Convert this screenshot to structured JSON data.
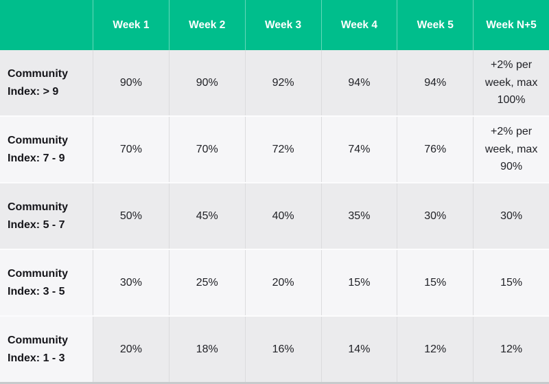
{
  "colors": {
    "header_bg": "#00BE8C",
    "header_text": "#FFFFFF",
    "row_gray": "#EBEBED",
    "row_light": "#F6F6F8"
  },
  "table": {
    "columns": [
      "Week 1",
      "Week 2",
      "Week 3",
      "Week 4",
      "Week 5",
      "Week N+5"
    ],
    "rows": [
      {
        "label_line1": "Community",
        "label_line2": "Index: > 9",
        "label_shade": "gray",
        "values_shade": "gray",
        "values": [
          "90%",
          "90%",
          "92%",
          "94%",
          "94%",
          "+2% per week, max 100%"
        ]
      },
      {
        "label_line1": "Community",
        "label_line2": "Index: 7 - 9",
        "label_shade": "light",
        "values_shade": "light",
        "values": [
          "70%",
          "70%",
          "72%",
          "74%",
          "76%",
          "+2% per week, max 90%"
        ]
      },
      {
        "label_line1": "Community",
        "label_line2": "Index: 5 - 7",
        "label_shade": "gray",
        "values_shade": "gray",
        "values": [
          "50%",
          "45%",
          "40%",
          "35%",
          "30%",
          "30%"
        ]
      },
      {
        "label_line1": "Community",
        "label_line2": "Index: 3 - 5",
        "label_shade": "light",
        "values_shade": "light",
        "values": [
          "30%",
          "25%",
          "20%",
          "15%",
          "15%",
          "15%"
        ]
      },
      {
        "label_line1": "Community",
        "label_line2": "Index: 1 - 3",
        "label_shade": "light",
        "values_shade": "gray",
        "values": [
          "20%",
          "18%",
          "16%",
          "14%",
          "12%",
          "12%"
        ]
      }
    ]
  },
  "chart_data": {
    "type": "table",
    "columns": [
      "",
      "Week 1",
      "Week 2",
      "Week 3",
      "Week 4",
      "Week 5",
      "Week N+5"
    ],
    "rows": [
      [
        "Community Index: > 9",
        "90%",
        "90%",
        "92%",
        "94%",
        "94%",
        "+2% per week, max 100%"
      ],
      [
        "Community Index: 7 - 9",
        "70%",
        "70%",
        "72%",
        "74%",
        "76%",
        "+2% per week, max 90%"
      ],
      [
        "Community Index: 5 - 7",
        "50%",
        "45%",
        "40%",
        "35%",
        "30%",
        "30%"
      ],
      [
        "Community Index: 3 - 5",
        "30%",
        "25%",
        "20%",
        "15%",
        "15%",
        "15%"
      ],
      [
        "Community Index: 1 - 3",
        "20%",
        "18%",
        "16%",
        "14%",
        "12%",
        "12%"
      ]
    ],
    "layout": {
      "header_fill": "#00BE8C",
      "row_striping": [
        "gray",
        "light",
        "gray",
        "light",
        "gray-values/light-label"
      ],
      "grid": true
    }
  }
}
